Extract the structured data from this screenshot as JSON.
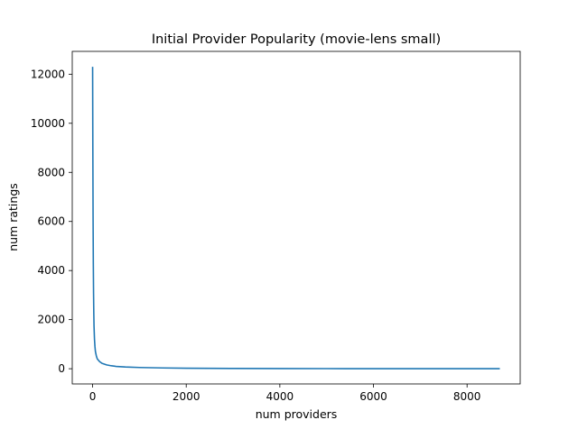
{
  "chart_data": {
    "type": "line",
    "title": "Initial Provider Popularity (movie-lens small)",
    "xlabel": "num providers",
    "ylabel": "num ratings",
    "xlim": [
      -435,
      9135
    ],
    "ylim": [
      -620,
      12930
    ],
    "xticks": [
      0,
      2000,
      4000,
      6000,
      8000
    ],
    "yticks": [
      0,
      2000,
      4000,
      6000,
      8000,
      10000,
      12000
    ],
    "xtick_labels": [
      "0",
      "2000",
      "4000",
      "6000",
      "8000"
    ],
    "ytick_labels": [
      "0",
      "2000",
      "4000",
      "6000",
      "8000",
      "10000",
      "12000"
    ],
    "grid": false,
    "legend": "none",
    "series": [
      {
        "color": "#1f77b4",
        "x": [
          0,
          5,
          10,
          15,
          20,
          25,
          30,
          40,
          50,
          60,
          80,
          100,
          150,
          200,
          300,
          400,
          500,
          700,
          1000,
          1500,
          2000,
          3000,
          4000,
          5000,
          6000,
          7000,
          8000,
          8700
        ],
        "y": [
          12300,
          9000,
          6200,
          4300,
          3100,
          2300,
          1750,
          1200,
          900,
          700,
          520,
          400,
          290,
          220,
          155,
          120,
          95,
          70,
          50,
          32,
          22,
          12,
          7,
          4,
          3,
          2,
          1,
          1
        ]
      }
    ]
  }
}
